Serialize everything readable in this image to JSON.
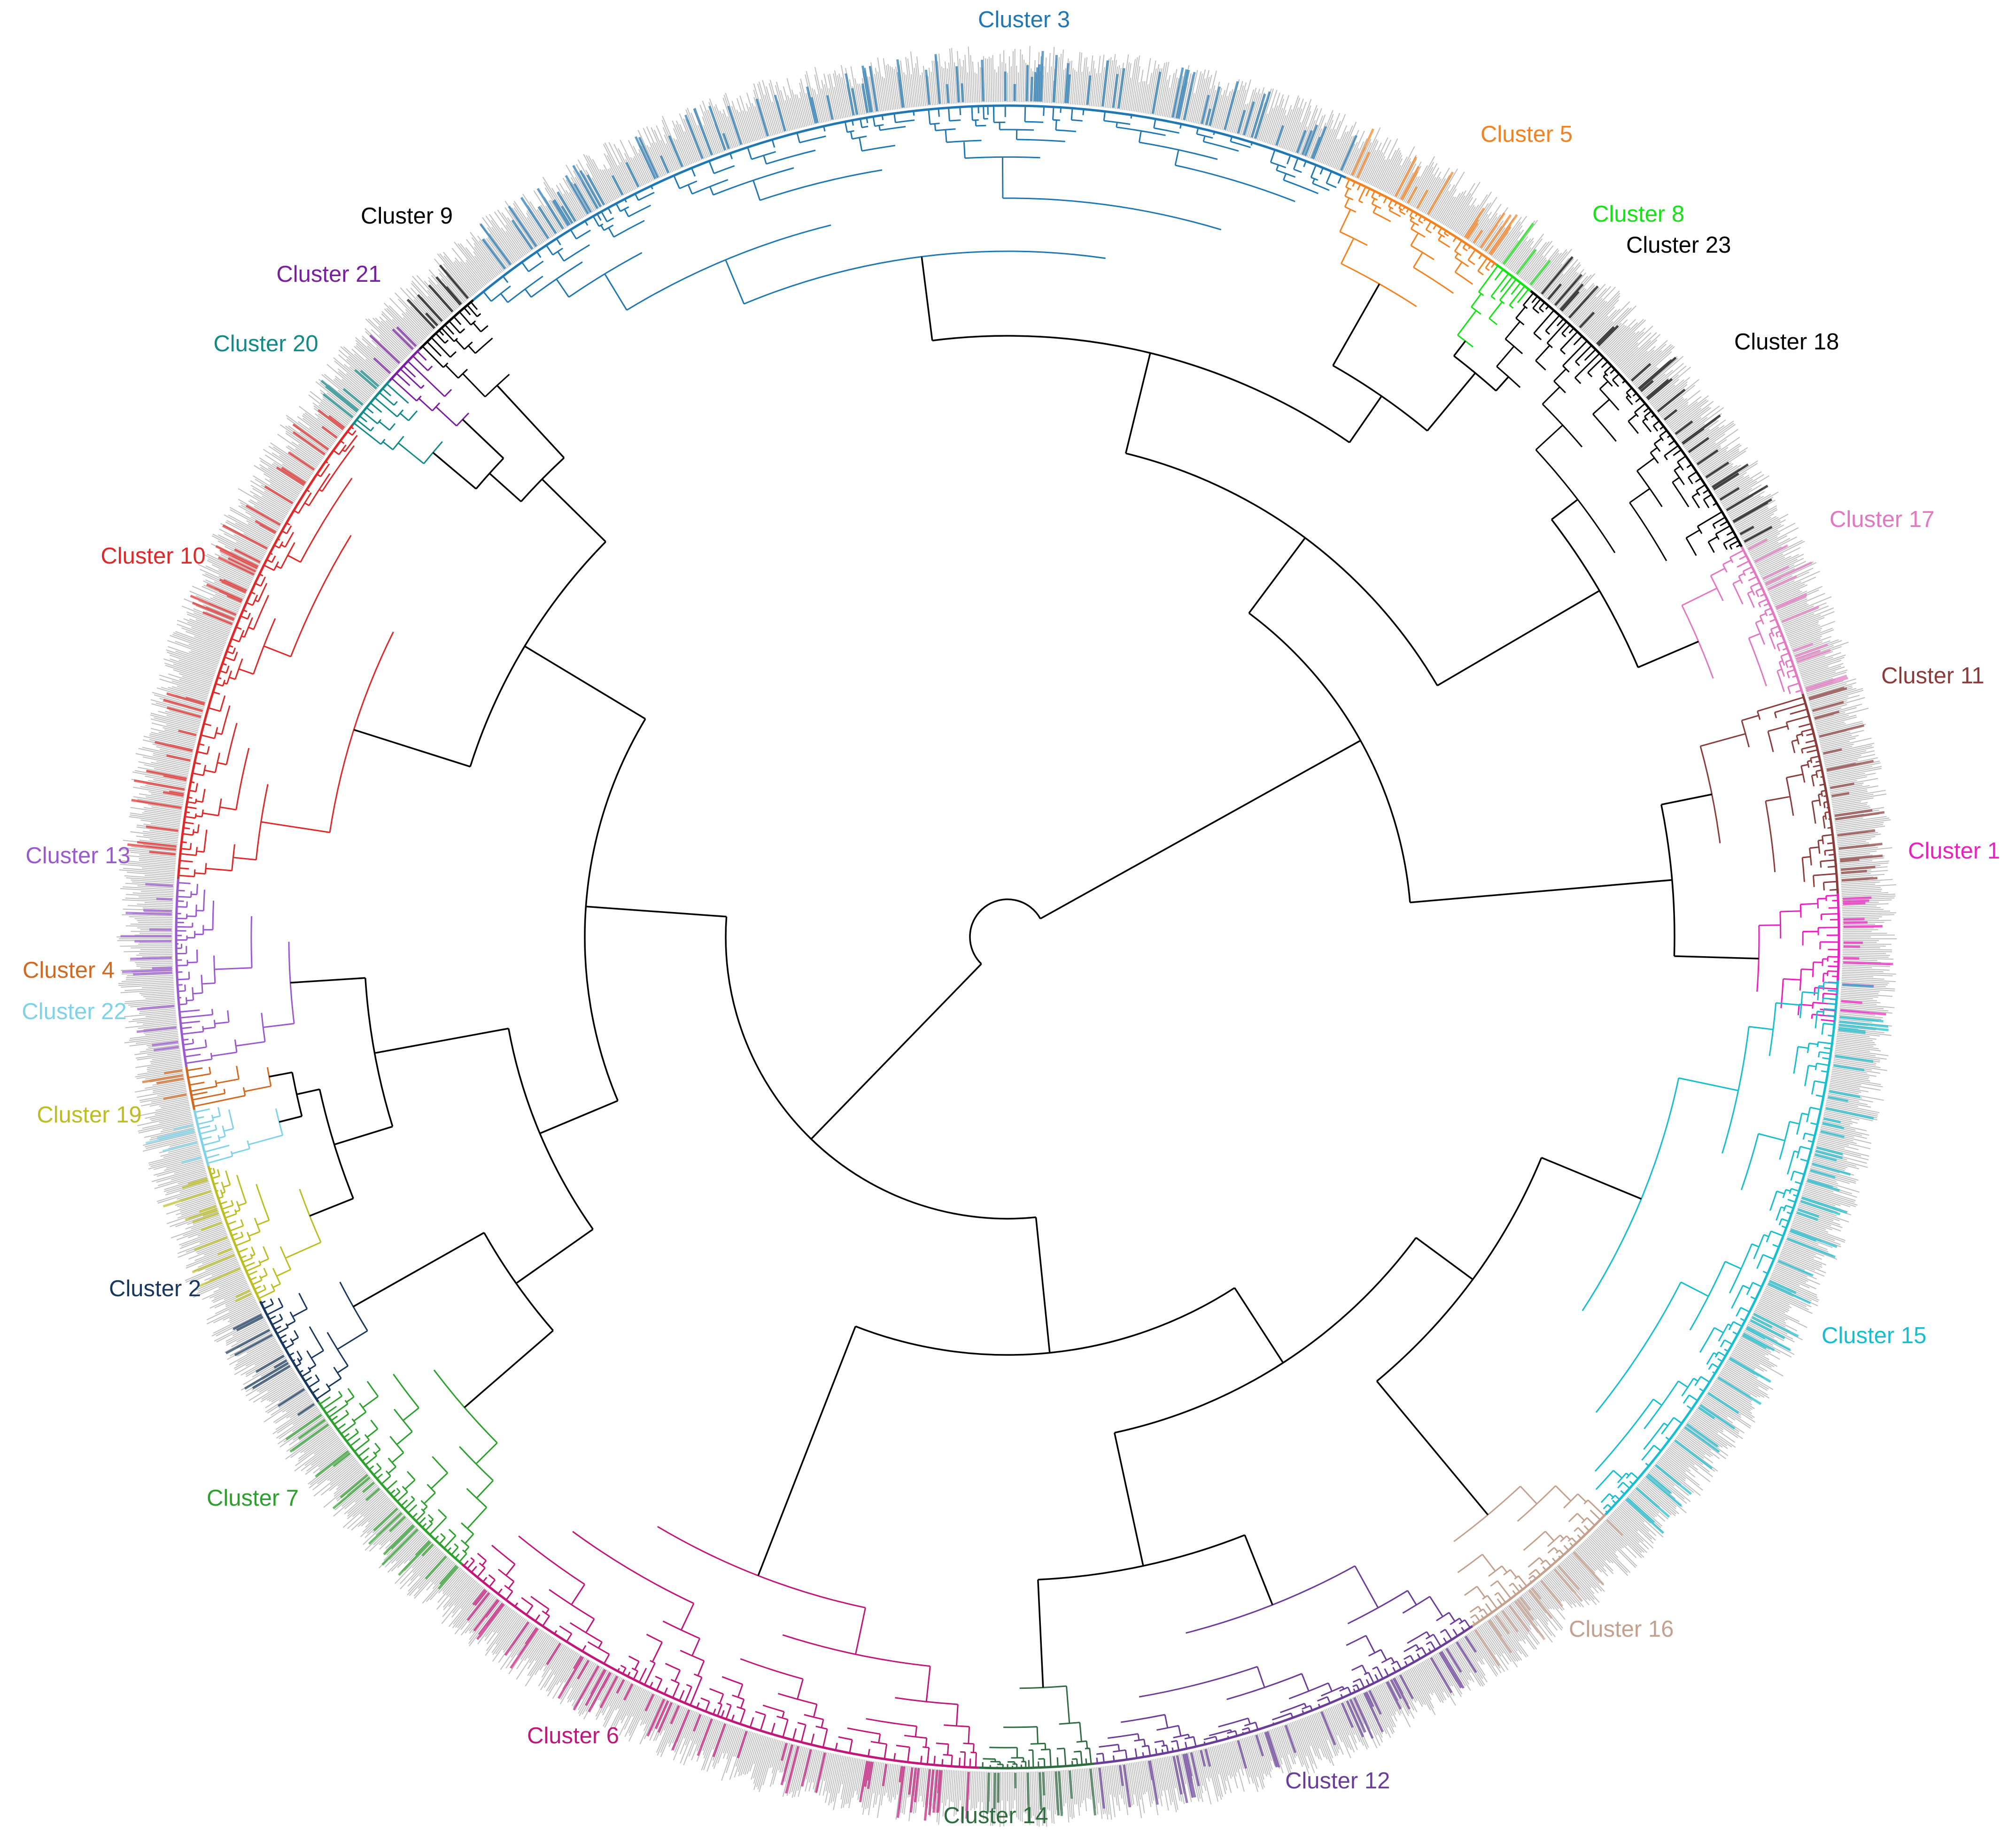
{
  "figure": {
    "background": "#ffffff",
    "tree_color": "#000000",
    "leaf_label_color": "#bdbdbd"
  },
  "clusters": [
    {
      "id": 1,
      "label": "Cluster 1",
      "color": "#ec1fbf",
      "start_deg": 87,
      "end_deg": 96
    },
    {
      "id": 11,
      "label": "Cluster 11",
      "color": "#8c3b3b",
      "start_deg": 73,
      "end_deg": 87
    },
    {
      "id": 17,
      "label": "Cluster 17",
      "color": "#e377c2",
      "start_deg": 62,
      "end_deg": 73
    },
    {
      "id": 18,
      "label": "Cluster 18",
      "color": "#000000",
      "start_deg": 44,
      "end_deg": 62
    },
    {
      "id": 23,
      "label": "Cluster 23",
      "color": "#000000",
      "start_deg": 39,
      "end_deg": 44
    },
    {
      "id": 8,
      "label": "Cluster 8",
      "color": "#16e316",
      "start_deg": 36,
      "end_deg": 39
    },
    {
      "id": 5,
      "label": "Cluster 5",
      "color": "#f58220",
      "start_deg": 24,
      "end_deg": 36
    },
    {
      "id": 3,
      "label": "Cluster 3",
      "color": "#1f77b4",
      "start_deg": -40,
      "end_deg": 24
    },
    {
      "id": 9,
      "label": "Cluster 9",
      "color": "#000000",
      "start_deg": -45,
      "end_deg": -40
    },
    {
      "id": 21,
      "label": "Cluster 21",
      "color": "#7b1fa2",
      "start_deg": -48,
      "end_deg": -45
    },
    {
      "id": 20,
      "label": "Cluster 20",
      "color": "#138a8a",
      "start_deg": -52,
      "end_deg": -48
    },
    {
      "id": 10,
      "label": "Cluster 10",
      "color": "#e02828",
      "start_deg": -86,
      "end_deg": -52
    },
    {
      "id": 13,
      "label": "Cluster 13",
      "color": "#9b59d0",
      "start_deg": -99,
      "end_deg": -86
    },
    {
      "id": 4,
      "label": "Cluster 4",
      "color": "#d2691e",
      "start_deg": -102,
      "end_deg": -99
    },
    {
      "id": 22,
      "label": "Cluster 22",
      "color": "#7fd3e8",
      "start_deg": -106,
      "end_deg": -102
    },
    {
      "id": 19,
      "label": "Cluster 19",
      "color": "#bcbd22",
      "start_deg": -116,
      "end_deg": -106
    },
    {
      "id": 2,
      "label": "Cluster 2",
      "color": "#17375e",
      "start_deg": -124,
      "end_deg": -116
    },
    {
      "id": 7,
      "label": "Cluster 7",
      "color": "#2ca02c",
      "start_deg": -139,
      "end_deg": -124
    },
    {
      "id": 6,
      "label": "Cluster 6",
      "color": "#c2177a",
      "start_deg": -178,
      "end_deg": -139
    },
    {
      "id": 14,
      "label": "Cluster 14",
      "color": "#2e6b3e",
      "start_deg": -186,
      "end_deg": -178
    },
    {
      "id": 12,
      "label": "Cluster 12",
      "color": "#6a3d9a",
      "start_deg": -214,
      "end_deg": -186
    },
    {
      "id": 16,
      "label": "Cluster 16",
      "color": "#c4a08e",
      "start_deg": -226,
      "end_deg": -214
    },
    {
      "id": 15,
      "label": "Cluster 15",
      "color": "#17becf",
      "start_deg": -267,
      "end_deg": -226
    }
  ]
}
